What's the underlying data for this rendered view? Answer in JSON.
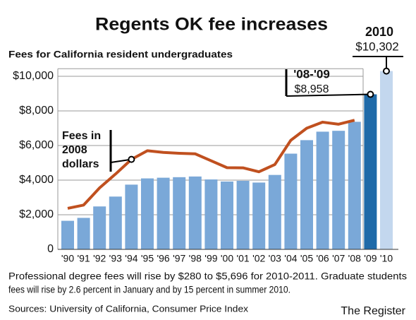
{
  "chart_data": {
    "type": "bar",
    "title": "Regents OK fee increases",
    "subtitle": "Fees for California resident undergraduates",
    "categories": [
      "'90",
      "'91",
      "'92",
      "'93",
      "'94",
      "'95",
      "'96",
      "'97",
      "'98",
      "'99",
      "'00",
      "'01",
      "'02",
      "'03",
      "'04",
      "'05",
      "'06",
      "'07",
      "'08",
      "'09",
      "'10"
    ],
    "series": [
      {
        "type": "bar",
        "color": "#7aa8d8",
        "colors": [
          "#7aa8d8",
          "#7aa8d8",
          "#7aa8d8",
          "#7aa8d8",
          "#7aa8d8",
          "#7aa8d8",
          "#7aa8d8",
          "#7aa8d8",
          "#7aa8d8",
          "#7aa8d8",
          "#7aa8d8",
          "#7aa8d8",
          "#7aa8d8",
          "#7aa8d8",
          "#7aa8d8",
          "#7aa8d8",
          "#7aa8d8",
          "#7aa8d8",
          "#7aa8d8",
          "#1f6aa8",
          "#c3d7ee"
        ],
        "values": [
          1650,
          1820,
          2480,
          3050,
          3740,
          4100,
          4140,
          4170,
          4210,
          4040,
          3920,
          3960,
          3860,
          4300,
          5530,
          6310,
          6800,
          6850,
          7370,
          8958,
          10302
        ],
        "value_labels": [
          null,
          null,
          null,
          null,
          null,
          null,
          null,
          null,
          null,
          null,
          null,
          null,
          null,
          null,
          null,
          null,
          null,
          null,
          null,
          "$8,958",
          "$10,302"
        ]
      },
      {
        "type": "line",
        "color": "#c0501f",
        "values": [
          2370,
          2560,
          3550,
          4350,
          5200,
          5700,
          5600,
          5550,
          5520,
          5120,
          4720,
          4710,
          4480,
          4900,
          6300,
          7000,
          7350,
          7230,
          7460,
          null,
          null
        ]
      }
    ],
    "annotations": {
      "bar_10": "2010",
      "bar_09": "'08-'09",
      "line": [
        "Fees in",
        "2008",
        "dollars"
      ]
    },
    "ylim": [
      0,
      10600
    ],
    "yticks": [
      0,
      {
        "value": 2000,
        "label": "$2,000"
      },
      {
        "value": 4000,
        "label": "$4,000"
      },
      {
        "value": 6000,
        "label": "$6,000"
      },
      {
        "value": 8000,
        "label": "$8,000"
      },
      {
        "value": 10000,
        "label": "$10,000"
      }
    ],
    "grid": true,
    "footnote": [
      "Professional degree fees will rise by $280 to $5,696 for 2010-2011.  Graduate students",
      "fees will rise by 2.6 percent in January and by 15 percent in summer 2010."
    ],
    "source": "Sources: University of California, Consumer Price Index",
    "credit": "The Register"
  }
}
